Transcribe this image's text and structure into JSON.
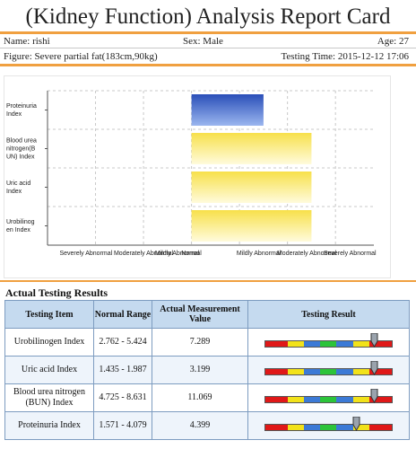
{
  "title": "(Kidney Function) Analysis Report Card",
  "info": {
    "name": "Name: rishi",
    "sex": "Sex: Male",
    "age": "Age: 27",
    "figure": "Figure: Severe partial fat(183cm,90kg)",
    "testing_time": "Testing Time: 2015-12-12 17:06"
  },
  "chart_data": {
    "type": "bar",
    "categories": [
      "Proteinuria Index",
      "Blood urea nitrogen(BUN) Index",
      "Uric acid Index",
      "Urobilinogen Index"
    ],
    "category_labels": [
      [
        "Proteinuria",
        "Index"
      ],
      [
        "Blood urea",
        "nitrogen(B",
        "UN) Index"
      ],
      [
        "Uric acid",
        "Index"
      ],
      [
        "Urobilinog",
        "en Index"
      ]
    ],
    "values": [
      1.5,
      2.5,
      2.5,
      2.5
    ],
    "xlim": [
      -3,
      3.8
    ],
    "tick_values": [
      -2,
      -1,
      0,
      1,
      2,
      3
    ],
    "tick_labels": [
      "Severely Abnormal",
      "Moderately Abnormal",
      "Mildly Abnormal",
      "Normal",
      "Mildly Abnormal",
      "Moderately Abnormal",
      "Severely Abnormal"
    ],
    "tick_label_values": [
      -2.2,
      -1,
      -0.3,
      0,
      1.4,
      2.4,
      3.3
    ],
    "bar_colors": [
      "blue",
      "yellow",
      "yellow",
      "yellow"
    ],
    "colors": {
      "blue_dark": "#2a4fb8",
      "blue_light": "#9bb6ef",
      "yellow_dark": "#f7e04a",
      "yellow_light": "#fffbdc"
    },
    "grid": true
  },
  "results": {
    "section_title": "Actual Testing Results",
    "headers": [
      "Testing Item",
      "Normal Range",
      "Actual Measurement Value",
      "Testing Result"
    ],
    "rows": [
      {
        "item": "Urobilinogen Index",
        "range": "2.762 - 5.424",
        "value": "7.289",
        "pointer": 0.86
      },
      {
        "item": "Uric acid Index",
        "range": "1.435 - 1.987",
        "value": "3.199",
        "pointer": 0.86
      },
      {
        "item": "Blood urea nitrogen (BUN) Index",
        "range": "4.725 - 8.631",
        "value": "11.069",
        "pointer": 0.86
      },
      {
        "item": "Proteinuria Index",
        "range": "1.571 - 4.079",
        "value": "4.399",
        "pointer": 0.72
      }
    ],
    "scale_colors": [
      "#e01818",
      "#f2e21a",
      "#3c7ad6",
      "#2cc43a",
      "#3c7ad6",
      "#f2e21a",
      "#e01818"
    ]
  }
}
